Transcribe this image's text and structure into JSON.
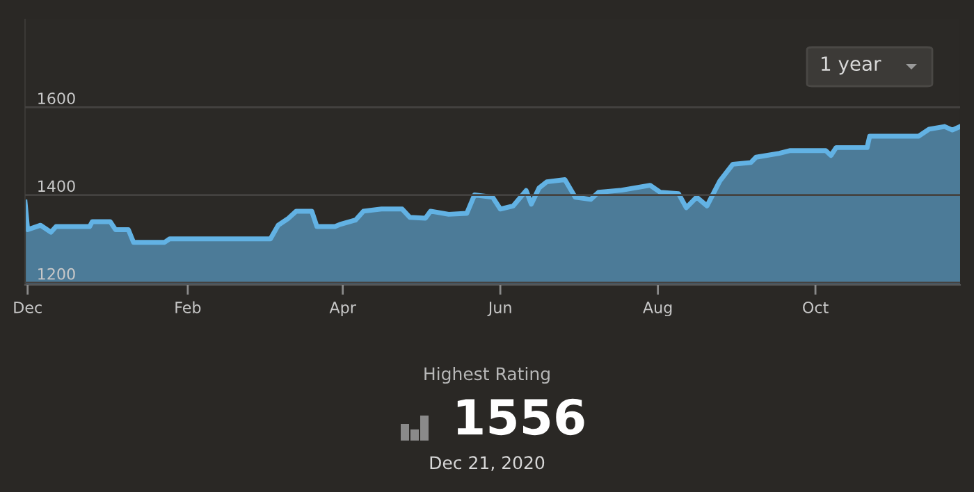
{
  "chart_data": {
    "type": "area",
    "color": "#62b2e4",
    "x": [
      "2019-11-30",
      "2019-12-01",
      "2019-12-06",
      "2019-12-10",
      "2019-12-12",
      "2019-12-25",
      "2019-12-26",
      "2020-01-02",
      "2020-01-04",
      "2020-01-09",
      "2020-01-11",
      "2020-01-23",
      "2020-01-25",
      "2020-03-04",
      "2020-03-07",
      "2020-03-11",
      "2020-03-14",
      "2020-03-20",
      "2020-03-22",
      "2020-03-29",
      "2020-03-31",
      "2020-04-06",
      "2020-04-09",
      "2020-04-16",
      "2020-04-24",
      "2020-04-27",
      "2020-05-03",
      "2020-05-05",
      "2020-05-12",
      "2020-05-19",
      "2020-05-22",
      "2020-05-29",
      "2020-06-01",
      "2020-06-06",
      "2020-06-11",
      "2020-06-13",
      "2020-06-16",
      "2020-06-19",
      "2020-06-26",
      "2020-06-30",
      "2020-07-06",
      "2020-07-09",
      "2020-07-18",
      "2020-07-29",
      "2020-08-02",
      "2020-08-09",
      "2020-08-12",
      "2020-08-16",
      "2020-08-20",
      "2020-08-25",
      "2020-08-30",
      "2020-09-06",
      "2020-09-08",
      "2020-09-17",
      "2020-09-21",
      "2020-10-05",
      "2020-10-07",
      "2020-10-09",
      "2020-10-21",
      "2020-10-22",
      "2020-11-10",
      "2020-11-14",
      "2020-11-20",
      "2020-11-23",
      "2020-11-26"
    ],
    "values": [
      1384,
      1321,
      1331,
      1315,
      1328,
      1328,
      1339,
      1339,
      1321,
      1321,
      1292,
      1292,
      1300,
      1300,
      1331,
      1347,
      1363,
      1363,
      1328,
      1328,
      1333,
      1343,
      1363,
      1368,
      1368,
      1349,
      1347,
      1363,
      1356,
      1358,
      1400,
      1395,
      1368,
      1375,
      1410,
      1379,
      1416,
      1430,
      1435,
      1395,
      1390,
      1406,
      1411,
      1422,
      1406,
      1403,
      1371,
      1395,
      1375,
      1432,
      1470,
      1474,
      1486,
      1495,
      1501,
      1501,
      1490,
      1508,
      1508,
      1534,
      1534,
      1550,
      1556,
      1548,
      1556
    ],
    "xlim": [
      "2019-11-30",
      "2020-11-26"
    ],
    "xticks": [
      {
        "value": "2019-12-01",
        "label": "Dec"
      },
      {
        "value": "2020-02-01",
        "label": "Feb"
      },
      {
        "value": "2020-04-01",
        "label": "Apr"
      },
      {
        "value": "2020-06-01",
        "label": "Jun"
      },
      {
        "value": "2020-08-01",
        "label": "Aug"
      },
      {
        "value": "2020-10-01",
        "label": "Oct"
      }
    ],
    "ylim": [
      1195,
      1800
    ],
    "yticks": [
      1200,
      1400,
      1600
    ],
    "grid": "y",
    "annotations": [
      "1 year",
      "Highest Rating",
      "1556",
      "Dec 21, 2020"
    ]
  }
}
